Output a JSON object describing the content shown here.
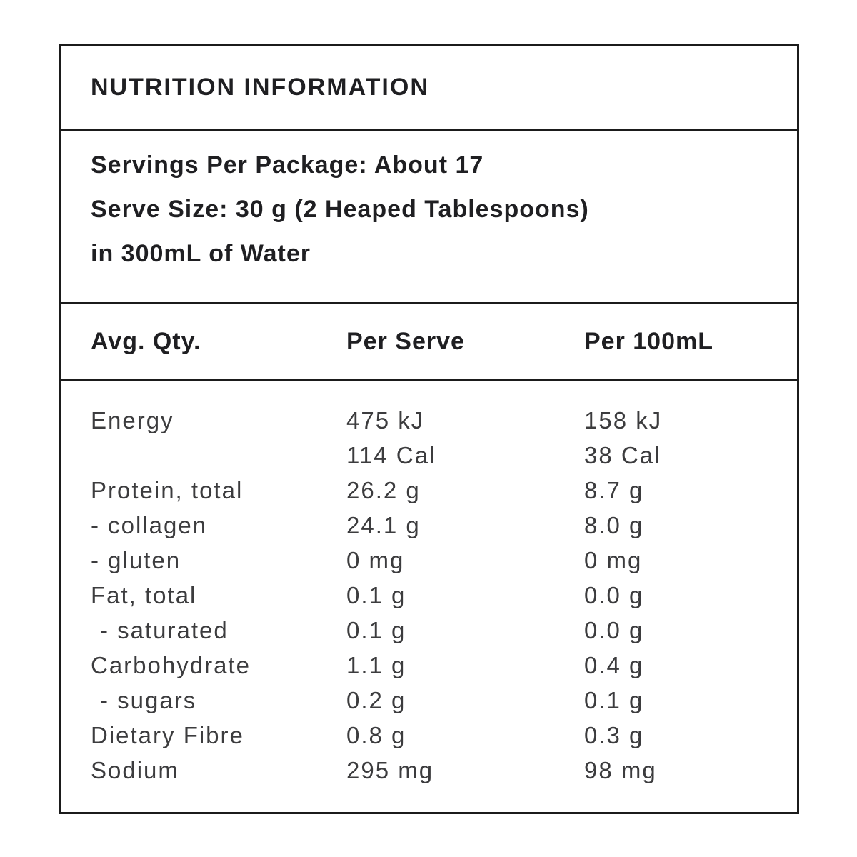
{
  "panel": {
    "title": "NUTRITION INFORMATION",
    "servings": {
      "line1": "Servings Per Package: About 17",
      "line2": "Serve Size: 30 g (2 Heaped Tablespoons)",
      "line3": "in 300mL of Water"
    },
    "columns": {
      "avg_qty": "Avg. Qty.",
      "per_serve": "Per Serve",
      "per_100ml": "Per 100mL"
    },
    "rows": [
      {
        "label": "Energy",
        "per_serve": "475 kJ",
        "per_100ml": "158 kJ",
        "indent": false
      },
      {
        "label": "",
        "per_serve": "114 Cal",
        "per_100ml": "38 Cal",
        "indent": false
      },
      {
        "label": "Protein, total",
        "per_serve": "26.2 g",
        "per_100ml": "8.7 g",
        "indent": false
      },
      {
        "label": "- collagen",
        "per_serve": "24.1 g",
        "per_100ml": "8.0 g",
        "indent": false
      },
      {
        "label": "- gluten",
        "per_serve": "0 mg",
        "per_100ml": "0 mg",
        "indent": false
      },
      {
        "label": "Fat, total",
        "per_serve": "0.1 g",
        "per_100ml": "0.0 g",
        "indent": false
      },
      {
        "label": "- saturated",
        "per_serve": "0.1 g",
        "per_100ml": "0.0 g",
        "indent": true
      },
      {
        "label": "Carbohydrate",
        "per_serve": "1.1 g",
        "per_100ml": "0.4 g",
        "indent": false
      },
      {
        "label": "- sugars",
        "per_serve": "0.2 g",
        "per_100ml": "0.1 g",
        "indent": true
      },
      {
        "label": "Dietary Fibre",
        "per_serve": "0.8 g",
        "per_100ml": "0.3 g",
        "indent": false
      },
      {
        "label": "Sodium",
        "per_serve": "295 mg",
        "per_100ml": "98 mg",
        "indent": false
      }
    ],
    "colors": {
      "text_dark": "#1f1f22",
      "text_light": "#3c3c3e",
      "border": "#1b1b1b",
      "background": "#ffffff"
    }
  }
}
